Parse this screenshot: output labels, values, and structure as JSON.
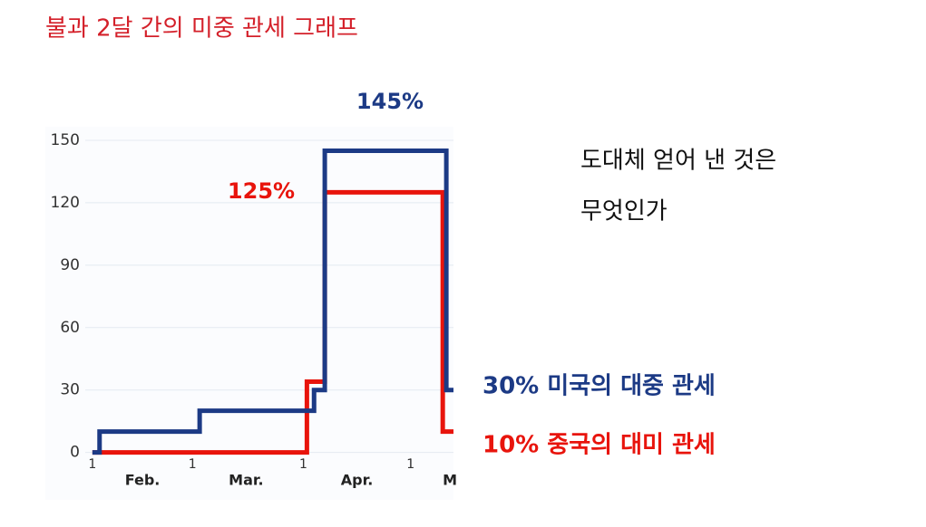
{
  "chart_data": {
    "type": "line",
    "title": "불과 2달 간의 미중 관세 그래프",
    "side_text": [
      "도대체 얻어 낸 것은",
      "무엇인가"
    ],
    "series": [
      {
        "name": "30% 미국의 대중 관세",
        "color": "#1c3a85",
        "x": [
          32,
          34,
          34,
          62,
          62,
          94,
          94,
          97,
          97,
          131,
          131,
          133
        ],
        "values": [
          0,
          0,
          10,
          10,
          20,
          20,
          30,
          30,
          145,
          145,
          30,
          30
        ]
      },
      {
        "name": "10% 중국의 대미 관세",
        "color": "#e8140c",
        "x": [
          32,
          92,
          92,
          97,
          97,
          130,
          130,
          133
        ],
        "values": [
          0,
          0,
          34,
          34,
          125,
          125,
          10,
          10
        ]
      }
    ],
    "annotations": [
      {
        "text": "145%",
        "color": "#1c3a85"
      },
      {
        "text": "125%",
        "color": "#e8140c"
      }
    ],
    "xlim": [
      30,
      133
    ],
    "ylim": [
      -8,
      150
    ],
    "yticks": [
      0,
      30,
      60,
      90,
      120,
      150
    ],
    "xticks": [
      {
        "value": 32,
        "label": "1"
      },
      {
        "value": 60,
        "label": "1"
      },
      {
        "value": 91,
        "label": "1"
      },
      {
        "value": 121,
        "label": "1"
      }
    ],
    "month_labels": [
      {
        "value": 46,
        "label": "Feb."
      },
      {
        "value": 75,
        "label": "Mar."
      },
      {
        "value": 106,
        "label": "Apr."
      },
      {
        "value": 132,
        "label": "M"
      }
    ],
    "grid": true
  }
}
